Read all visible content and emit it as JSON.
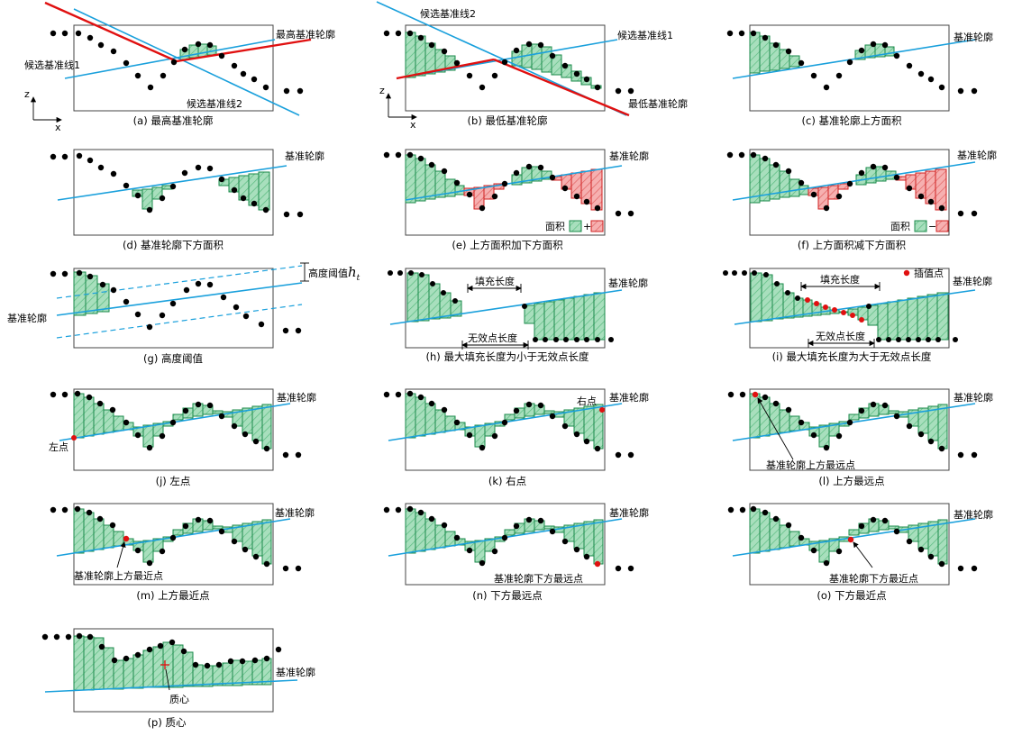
{
  "panels": [
    {
      "id": "a",
      "caption": "(a) 最高基准轮廓",
      "labels": [
        "候选基准线1",
        "候选基准线2",
        "最高基准轮廓"
      ],
      "axes": {
        "y": "z",
        "x": "x"
      }
    },
    {
      "id": "b",
      "caption": "(b) 最低基准轮廓",
      "labels": [
        "候选基准线1",
        "候选基准线2",
        "最低基准轮廓"
      ],
      "axes": {
        "y": "z",
        "x": "x"
      }
    },
    {
      "id": "c",
      "caption": "(c) 基准轮廓上方面积",
      "labels": [
        "基准轮廓"
      ]
    },
    {
      "id": "d",
      "caption": "(d) 基准轮廓下方面积",
      "labels": [
        "基准轮廓"
      ]
    },
    {
      "id": "e",
      "caption": "(e) 上方面积加下方面积",
      "labels": [
        "基准轮廓",
        "面积",
        "+"
      ]
    },
    {
      "id": "f",
      "caption": "(f) 上方面积减下方面积",
      "labels": [
        "基准轮廓",
        "面积",
        "−"
      ]
    },
    {
      "id": "g",
      "caption": "(g) 高度阈值",
      "labels": [
        "基准轮廓",
        "高度阈值",
        "h",
        "t"
      ]
    },
    {
      "id": "h",
      "caption": "(h) 最大填充长度为小于无效点长度",
      "labels": [
        "填充长度",
        "无效点长度",
        "基准轮廓"
      ]
    },
    {
      "id": "i",
      "caption": "(i) 最大填充长度为大于无效点长度",
      "labels": [
        "填充长度",
        "无效点长度",
        "基准轮廓",
        "插值点"
      ]
    },
    {
      "id": "j",
      "caption": "(j) 左点",
      "labels": [
        "基准轮廓",
        "左点"
      ]
    },
    {
      "id": "k",
      "caption": "(k) 右点",
      "labels": [
        "基准轮廓",
        "右点"
      ]
    },
    {
      "id": "l",
      "caption": "(l) 上方最远点",
      "labels": [
        "基准轮廓",
        "基准轮廓上方最远点"
      ]
    },
    {
      "id": "m",
      "caption": "(m) 上方最近点",
      "labels": [
        "基准轮廓",
        "基准轮廓上方最近点"
      ]
    },
    {
      "id": "n",
      "caption": "(n) 下方最远点",
      "labels": [
        "基准轮廓",
        "基准轮廓下方最远点"
      ]
    },
    {
      "id": "o",
      "caption": "(o) 下方最近点",
      "labels": [
        "基准轮廓",
        "基准轮廓下方最近点"
      ]
    },
    {
      "id": "p",
      "caption": "(p) 质心",
      "labels": [
        "基准轮廓",
        "质心"
      ]
    }
  ],
  "colors": {
    "fill_green": "#9fd9b4",
    "stroke_green": "#1a8a4a",
    "fill_red": "#f29a9a",
    "stroke_red": "#d02020",
    "line_blue": "#1aa0dc",
    "line_red": "#e01010",
    "point_red": "#e01010"
  }
}
